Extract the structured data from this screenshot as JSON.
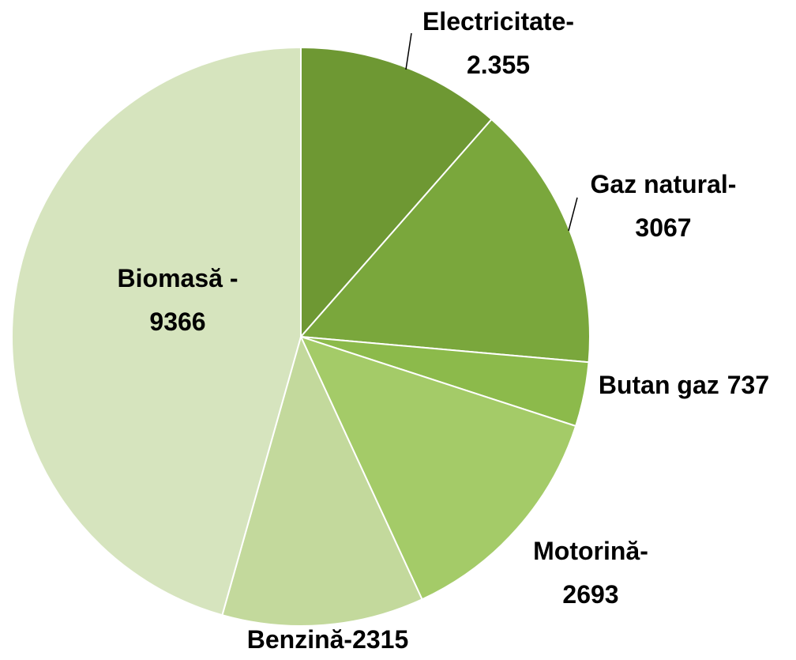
{
  "chart_data": {
    "type": "pie",
    "categories": [
      "Electricitate-",
      "Gaz natural-",
      "Butan gaz",
      "Motorină-",
      "Benzină-",
      "Biomasă -"
    ],
    "values": [
      2355,
      3067,
      737,
      2693,
      2315,
      9366
    ],
    "value_labels": [
      "2.355",
      "3067",
      "737",
      "2693",
      "2315",
      "9366"
    ],
    "colors": [
      "#6e9833",
      "#7aa73c",
      "#8cba4b",
      "#a4cb68",
      "#c3d99c",
      "#d6e4be"
    ]
  }
}
